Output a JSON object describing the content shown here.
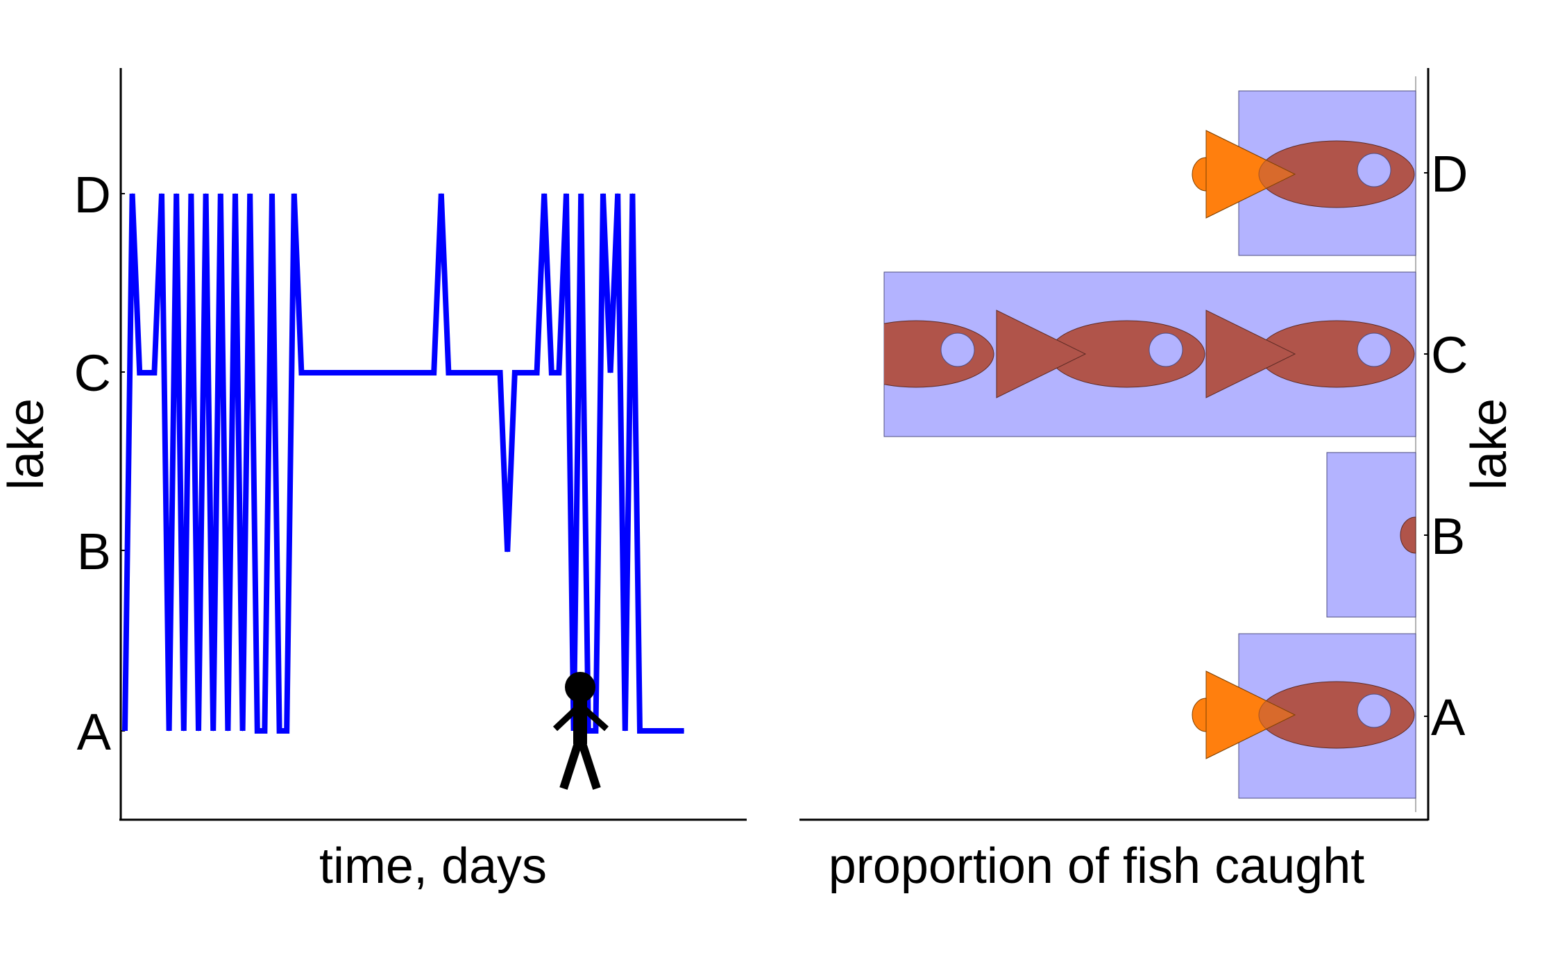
{
  "chart_data": [
    {
      "type": "line",
      "xlabel": "time, days",
      "ylabel": "lake",
      "categories_y": [
        "A",
        "B",
        "C",
        "D"
      ],
      "ylim": [
        0.35,
        4.7
      ],
      "series": [
        {
          "color": "#0000ff",
          "x": [
            0,
            1,
            2,
            3,
            4,
            5,
            6,
            7,
            8,
            9,
            10,
            11,
            12,
            13,
            14,
            15,
            16,
            17,
            18,
            19,
            20,
            21,
            22,
            23,
            24,
            25,
            26,
            27,
            28,
            29,
            30,
            31,
            32,
            33,
            34,
            35,
            36,
            37,
            38,
            39,
            40,
            41,
            42,
            43,
            44,
            45,
            46,
            47,
            48,
            49,
            50,
            51,
            52,
            53,
            54,
            55,
            56,
            57,
            58,
            59,
            60,
            61,
            62,
            63,
            64,
            65,
            66,
            67,
            68,
            69,
            70,
            71,
            72,
            73,
            74,
            75,
            76
          ],
          "y": [
            1,
            4,
            3,
            3,
            3,
            4,
            1,
            4,
            1,
            4,
            1,
            4,
            1,
            4,
            1,
            4,
            1,
            4,
            1,
            1,
            4,
            1,
            1,
            4,
            3,
            3,
            3,
            3,
            3,
            3,
            3,
            3,
            3,
            3,
            3,
            3,
            3,
            3,
            3,
            3,
            3,
            3,
            3,
            4,
            3,
            3,
            3,
            3,
            3,
            3,
            3,
            3,
            2,
            3,
            3,
            3,
            3,
            4,
            3,
            3,
            4,
            1,
            4,
            1,
            1,
            4,
            3,
            4,
            1,
            4,
            1,
            1,
            1,
            1,
            1,
            1,
            1
          ]
        }
      ],
      "walker_icon": "stick-figure-icon"
    },
    {
      "type": "bar",
      "orientation": "horizontal",
      "xlabel": "proportion of fish caught",
      "ylabel": "lake",
      "categories": [
        "A",
        "B",
        "C",
        "D"
      ],
      "values": [
        0.2,
        0.1,
        0.6,
        0.2
      ],
      "xlim": [
        0,
        0.7
      ],
      "bar_color": "#b3b3ff",
      "fish_color": "#b0544a",
      "tail_color": "#ff7f0e",
      "fish_icon": "fish-icon"
    }
  ]
}
